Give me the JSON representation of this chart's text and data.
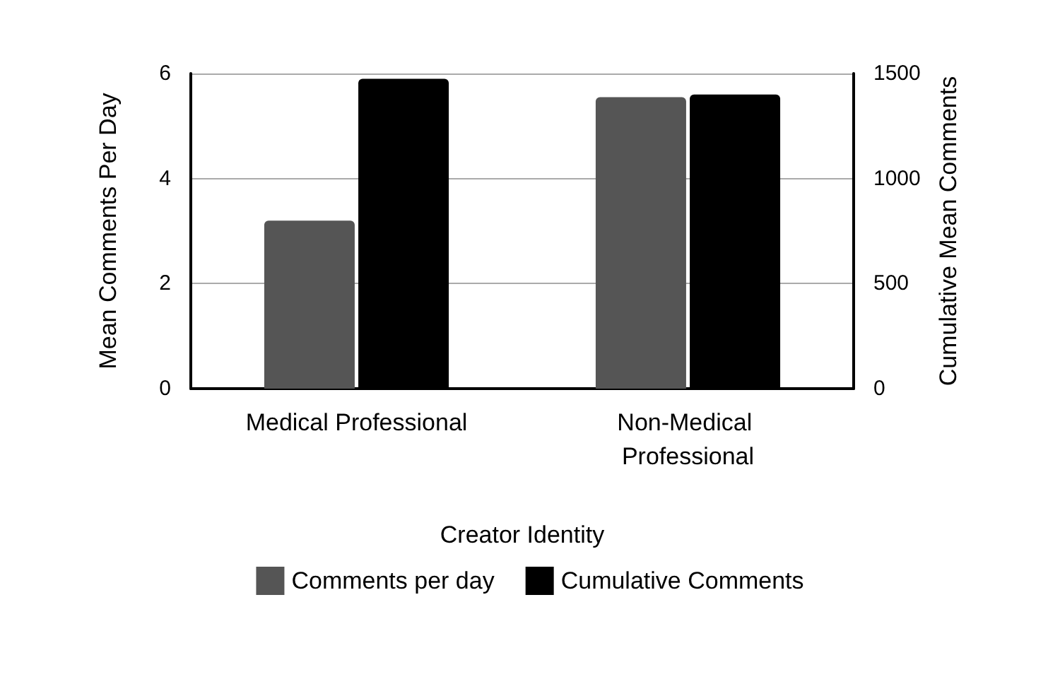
{
  "chart_data": {
    "type": "bar",
    "xlabel": "Creator Identity",
    "ylabel": "Mean Comments Per Day",
    "y2label": "Cumulative Mean Comments",
    "categories": [
      "Medical Professional",
      "Non-Medical Professional"
    ],
    "series": [
      {
        "name": "Comments per day",
        "color": "#555555",
        "values": [
          3.2,
          5.55
        ]
      },
      {
        "name": "Cumulative Comments",
        "color": "#000000",
        "values": [
          1475,
          1400
        ],
        "axis": "y2"
      }
    ],
    "ylim": [
      0,
      6
    ],
    "yticks": [
      0,
      2,
      4,
      6
    ],
    "y2lim": [
      0,
      1500
    ],
    "y2ticks": [
      0,
      500,
      1000,
      1500
    ],
    "grid": "y",
    "legend": "bottom"
  }
}
